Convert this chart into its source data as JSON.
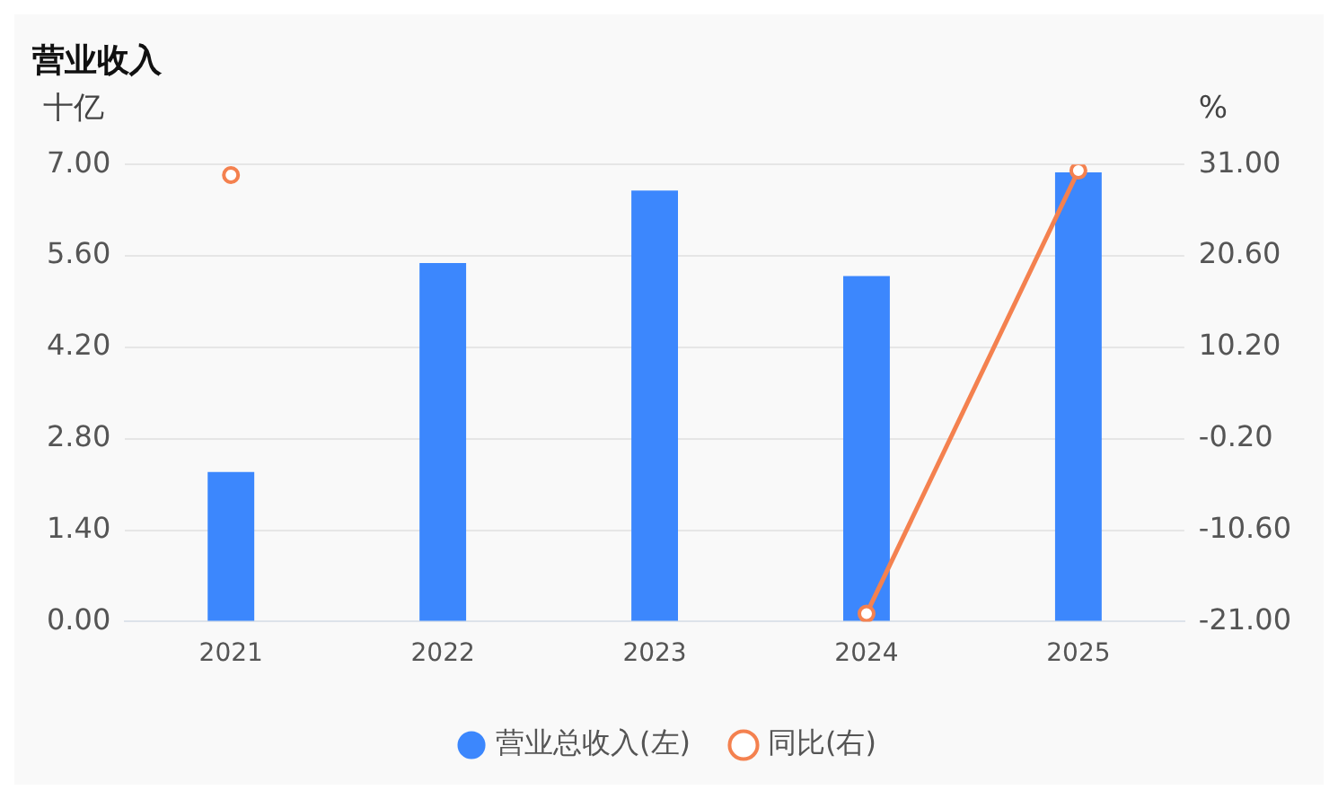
{
  "chart_data": {
    "type": "bar",
    "title": "营业收入",
    "ylabel": "十亿",
    "y2label": "%",
    "categories": [
      "2021",
      "2022",
      "2023",
      "2024",
      "2025"
    ],
    "series": [
      {
        "name": "营业总收入(左)",
        "color": "#3c87fd",
        "values": [
          2.29,
          5.49,
          6.6,
          5.29,
          6.88
        ]
      },
      {
        "name": "同比(右)",
        "type": "line",
        "axis": "y2",
        "color": "#f4814f",
        "marker": "circle",
        "values": [
          29.8,
          null,
          null,
          -20.1,
          30.3
        ]
      }
    ],
    "ylim": [
      0,
      7
    ],
    "yticks": [
      {
        "value": 0,
        "label": "0.00"
      },
      {
        "value": 1.4,
        "label": "1.40"
      },
      {
        "value": 2.8,
        "label": "2.80"
      },
      {
        "value": 4.2,
        "label": "4.20"
      },
      {
        "value": 5.6,
        "label": "5.60"
      },
      {
        "value": 7,
        "label": "7.00"
      }
    ],
    "y2lim": [
      -21,
      31
    ],
    "y2ticks": [
      {
        "value": -21,
        "label": "-21.00"
      },
      {
        "value": -10.6,
        "label": "-10.60"
      },
      {
        "value": -0.2,
        "label": "-0.20"
      },
      {
        "value": 10.2,
        "label": "10.20"
      },
      {
        "value": 20.6,
        "label": "20.60"
      },
      {
        "value": 31,
        "label": "31.00"
      }
    ],
    "grid": "y",
    "legend": "bottom"
  }
}
